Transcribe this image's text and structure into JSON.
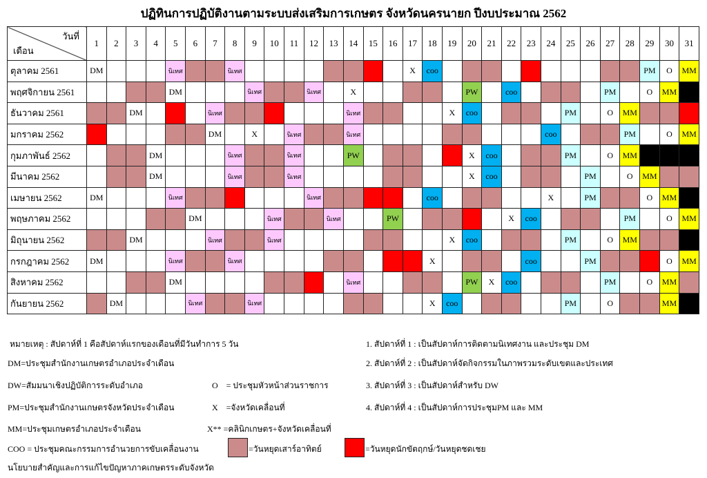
{
  "title": "ปฏิทินการปฏิบัติงานตามระบบส่งเสริมการเกษตร จังหวัดนครนายก ปีงบประมาณ 2562",
  "header": {
    "day_label": "วันที่",
    "month_label": "เดือน",
    "days": [
      "1",
      "2",
      "3",
      "4",
      "5",
      "6",
      "7",
      "8",
      "9",
      "10",
      "11",
      "12",
      "13",
      "14",
      "15",
      "16",
      "17",
      "18",
      "19",
      "20",
      "21",
      "22",
      "23",
      "24",
      "25",
      "26",
      "27",
      "28",
      "29",
      "30",
      "31"
    ]
  },
  "cell_styles": {
    "weekend": "#cc8b8b",
    "holiday": "#ff0000",
    "na": "#000000",
    "นิเทศ": "#fdc9fd",
    "coo": "#00b0f0",
    "PM": "#ccffff",
    "MM": "#ffff00",
    "PW": "#92d050"
  },
  "rows": [
    {
      "month": "ตุลาคม 2561",
      "cells": [
        "DM",
        "",
        "",
        "",
        "นิเทศ",
        "weekend",
        "weekend",
        "นิเทศ",
        "",
        "",
        "",
        "",
        "weekend",
        "weekend",
        "holiday",
        "",
        "X",
        "coo",
        "",
        "weekend",
        "weekend",
        "",
        "holiday",
        "",
        "",
        "",
        "weekend",
        "weekend",
        "PM",
        "O",
        "MM"
      ]
    },
    {
      "month": "พฤศจิกายน 2561",
      "cells": [
        "",
        "",
        "weekend",
        "weekend",
        "DM",
        "",
        "",
        "",
        "นิเทศ",
        "weekend",
        "weekend",
        "นิเทศ",
        "",
        "X",
        "",
        "",
        "weekend",
        "weekend",
        "",
        "PW",
        "",
        "coo",
        "",
        "weekend",
        "weekend",
        "",
        "PM",
        "",
        "O",
        "MM",
        "na"
      ]
    },
    {
      "month": "ธันวาคม 2561",
      "cells": [
        "weekend",
        "weekend",
        "DM",
        "",
        "holiday",
        "",
        "นิเทศ",
        "weekend",
        "weekend",
        "holiday",
        "",
        "",
        "",
        "นิเทศ",
        "weekend",
        "weekend",
        "",
        "",
        "X",
        "coo",
        "",
        "weekend",
        "weekend",
        "",
        "PM",
        "",
        "O",
        "MM",
        "weekend",
        "weekend",
        "holiday"
      ]
    },
    {
      "month": "มกราคม 2562",
      "cells": [
        "holiday",
        "",
        "",
        "",
        "weekend",
        "weekend",
        "DM",
        "",
        "X",
        "",
        "นิเทศ",
        "weekend",
        "weekend",
        "นิเทศ",
        "",
        "",
        "",
        "",
        "weekend",
        "weekend",
        "",
        "",
        "",
        "coo",
        "",
        "weekend",
        "weekend",
        "PM",
        "",
        "O",
        "MM"
      ]
    },
    {
      "month": "กุมภาพันธ์ 2562",
      "cells": [
        "",
        "weekend",
        "weekend",
        "DM",
        "",
        "",
        "",
        "นิเทศ",
        "weekend",
        "weekend",
        "นิเทศ",
        "",
        "",
        "PW",
        "",
        "weekend",
        "weekend",
        "",
        "holiday",
        "X",
        "coo",
        "",
        "weekend",
        "weekend",
        "PM",
        "",
        "O",
        "MM",
        "na",
        "na",
        "na"
      ]
    },
    {
      "month": "มีนาคม 2562",
      "cells": [
        "",
        "weekend",
        "weekend",
        "DM",
        "",
        "",
        "",
        "นิเทศ",
        "weekend",
        "weekend",
        "นิเทศ",
        "",
        "",
        "",
        "",
        "weekend",
        "weekend",
        "",
        "",
        "X",
        "coo",
        "",
        "weekend",
        "weekend",
        "",
        "PM",
        "",
        "O",
        "MM",
        "weekend",
        "weekend"
      ]
    },
    {
      "month": "เมษายน 2562",
      "cells": [
        "DM",
        "",
        "",
        "",
        "นิเทศ",
        "weekend",
        "weekend",
        "holiday",
        "",
        "",
        "",
        "นิเทศ",
        "weekend",
        "weekend",
        "holiday",
        "holiday",
        "",
        "coo",
        "",
        "weekend",
        "weekend",
        "",
        "",
        "X",
        "",
        "PM",
        "weekend",
        "weekend",
        "O",
        "MM",
        "na"
      ]
    },
    {
      "month": "พฤษภาคม 2562",
      "cells": [
        "",
        "",
        "",
        "weekend",
        "weekend",
        "DM",
        "",
        "",
        "",
        "นิเทศ",
        "weekend",
        "weekend",
        "นิเทศ",
        "",
        "",
        "PW",
        "",
        "weekend",
        "weekend",
        "holiday",
        "",
        "X",
        "coo",
        "",
        "weekend",
        "weekend",
        "",
        "PM",
        "",
        "O",
        "MM"
      ]
    },
    {
      "month": "มิถุนายน 2562",
      "cells": [
        "weekend",
        "weekend",
        "DM",
        "",
        "",
        "",
        "นิเทศ",
        "weekend",
        "weekend",
        "นิเทศ",
        "",
        "",
        "",
        "",
        "weekend",
        "weekend",
        "",
        "",
        "X",
        "coo",
        "",
        "weekend",
        "weekend",
        "",
        "PM",
        "",
        "O",
        "MM",
        "weekend",
        "weekend",
        "na"
      ]
    },
    {
      "month": "กรกฎาคม 2562",
      "cells": [
        "DM",
        "",
        "",
        "",
        "นิเทศ",
        "weekend",
        "weekend",
        "นิเทศ",
        "",
        "",
        "",
        "",
        "weekend",
        "weekend",
        "",
        "holiday",
        "holiday",
        "X",
        "",
        "weekend",
        "weekend",
        "",
        "coo",
        "",
        "",
        "PM",
        "weekend",
        "weekend",
        "holiday",
        "O",
        "MM"
      ]
    },
    {
      "month": "สิงหาคม 2562",
      "cells": [
        "",
        "",
        "weekend",
        "weekend",
        "DM",
        "",
        "",
        "",
        "",
        "weekend",
        "weekend",
        "holiday",
        "",
        "นิเทศ",
        "",
        "",
        "weekend",
        "weekend",
        "",
        "PW",
        "X",
        "coo",
        "",
        "weekend",
        "weekend",
        "",
        "PM",
        "",
        "O",
        "MM",
        "weekend"
      ]
    },
    {
      "month": "กันยายน 2562",
      "cells": [
        "weekend",
        "DM",
        "",
        "",
        "",
        "นิเทศ",
        "weekend",
        "weekend",
        "นิเทศ",
        "",
        "",
        "",
        "",
        "weekend",
        "weekend",
        "",
        "",
        "X",
        "coo",
        "",
        "weekend",
        "weekend",
        "",
        "",
        "PM",
        "",
        "O",
        "weekend",
        "weekend",
        "MM",
        "na"
      ]
    }
  ],
  "notes": {
    "remark": "หมายเหตุ :  สัปดาห์ที่ 1 คือสัปดาห์แรกของเดือนที่มีวันทำการ 5 วัน",
    "dm": "DM=ประชุมสำนักงานเกษตรอำเภอประจำเดือน",
    "dw": "DW=สัมมนาเชิงปฏิบัติการระดับอำเภอ",
    "pm": "PM=ประชุมสำนักงานเกษตรจังหวัดประจำเดือน",
    "mm": "MM=ประชุมเกษตรอำเภอประจำเดือน",
    "coo1": "COO = ประชุมคณะกรรมการอำนวยการขับเคลื่อนงาน",
    "coo2": "นโยบายสำคัญและการแก้ไขปัญหาภาคเกษตรระดับจังหวัด",
    "o": "O    = ประชุมหัวหน้าส่วนราชการ",
    "x": "X    =จังหวัดเคลื่อนที่",
    "xx": "X** =คลินิกเกษตร+จังหวัดเคลื่อนที่",
    "weekend": "=วันหยุดเสาร์อาทิตย์",
    "holiday": "=วันหยุดนักขัตฤกษ์/วันหยุดชดเชย",
    "week1": "1. สัปดาห์ที่ 1 : เป็นสัปดาห์การติดตามนิเทศงาน และประชุม DM",
    "week2": "2. สัปดาห์ที่ 2 : เป็นสัปดาห์จัดกิจกรรมในภาพรวมระดับเขตและประเทศ",
    "week3": "3. สัปดาห์ที่ 3 : เป็นสัปดาห์สำหรับ DW",
    "week4": "4. สัปดาห์ที่ 4 : เป็นสัปดาห์การประชุมPM และ MM"
  }
}
